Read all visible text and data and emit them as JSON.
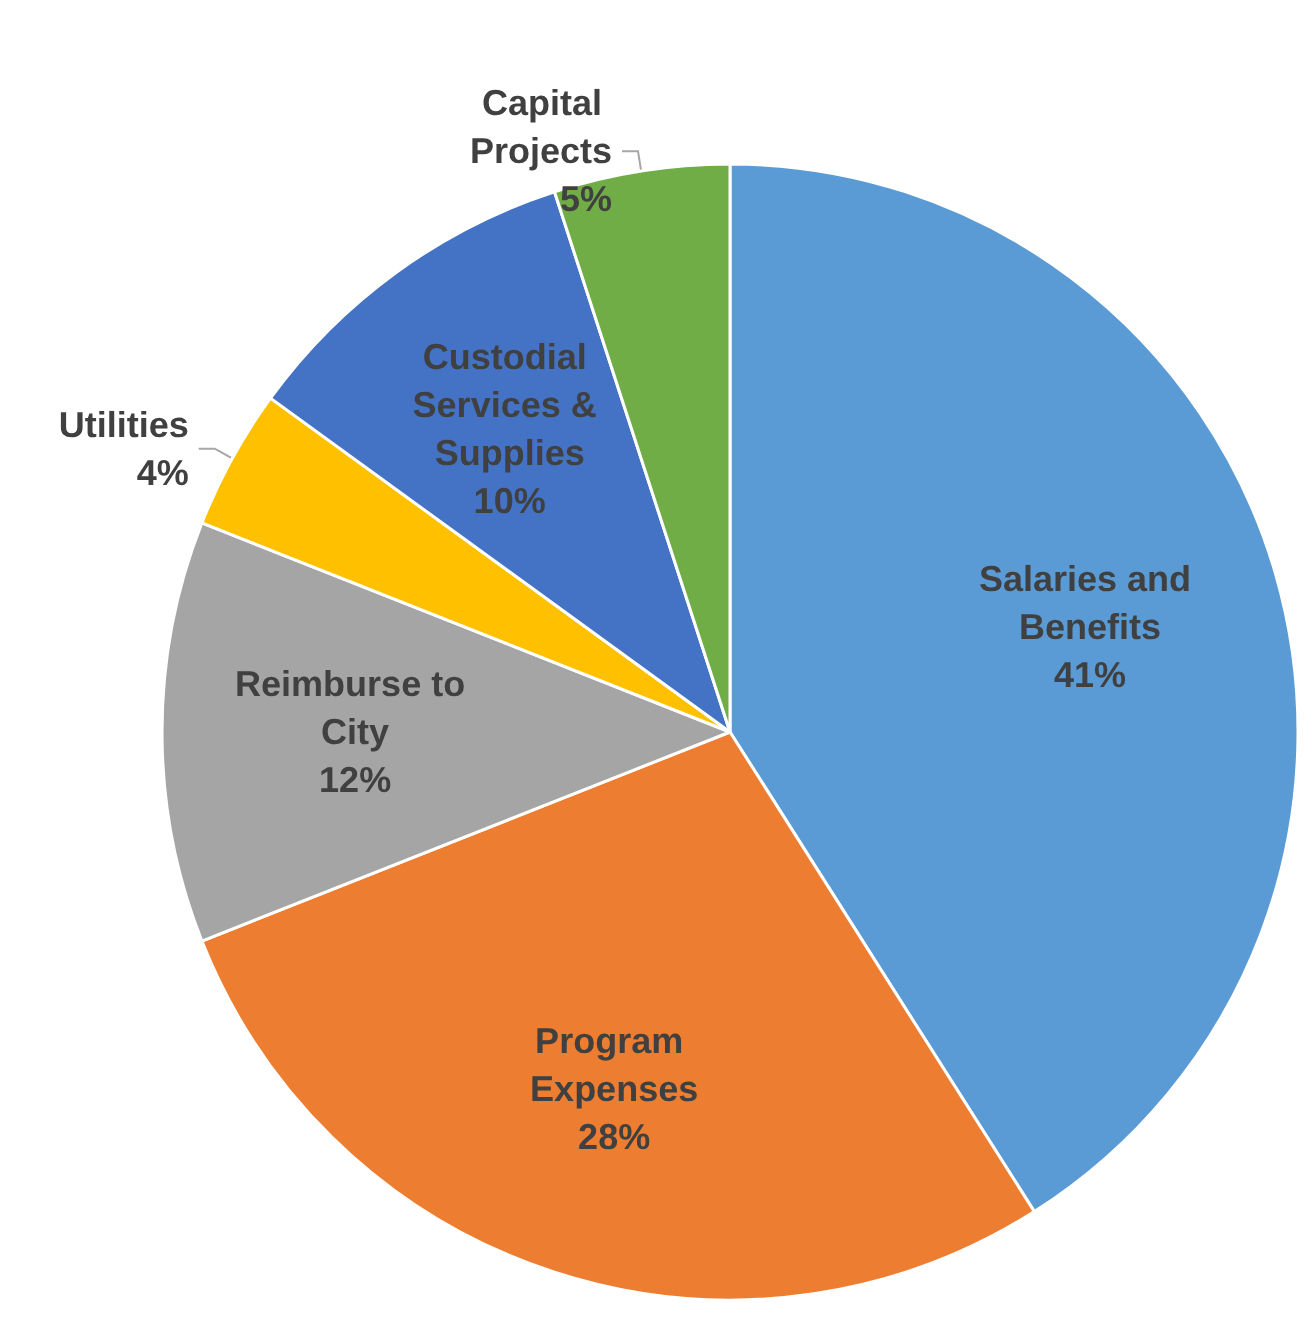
{
  "chart_data": {
    "type": "pie",
    "categories": [
      "Salaries and Benefits",
      "Program Expenses",
      "Reimburse to City",
      "Utilities",
      "Custodial Services & Supplies",
      "Capital Projects"
    ],
    "values": [
      41,
      28,
      12,
      4,
      10,
      5
    ],
    "colors": [
      "#5b9bd5",
      "#ed7d31",
      "#a5a5a5",
      "#ffc000",
      "#4472c4",
      "#70ad47"
    ],
    "value_labels": [
      "41%",
      "28%",
      "12%",
      "4%",
      "10%",
      "5%"
    ],
    "legend": false
  }
}
